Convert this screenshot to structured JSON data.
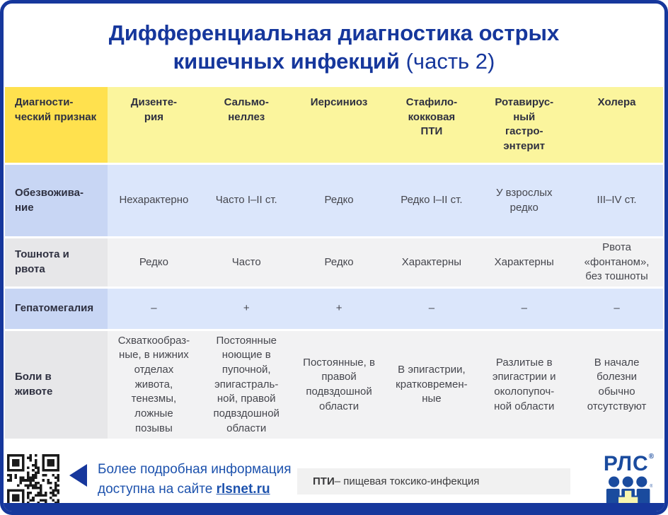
{
  "title": {
    "line1": "Дифференциальная диагностика острых",
    "line2_bold": "кишечных инфекций",
    "line2_regular": " (часть 2)"
  },
  "table": {
    "header": [
      "Диагности-\nческий признак",
      "Дизенте-\nрия",
      "Сальмо-\nнеллез",
      "Иерсиниоз",
      "Стафило-\nкокковая\nПТИ",
      "Ротавирус-\nный\nгастро-\nэнтерит",
      "Холера"
    ],
    "rows": [
      {
        "label": "Обезвожива-\nние",
        "cells": [
          "Нехарактерно",
          "Часто I–II ст.",
          "Редко",
          "Редко I–II ст.",
          "У взрослых\nредко",
          "III–IV ст."
        ]
      },
      {
        "label": "Тошнота и\nрвота",
        "cells": [
          "Редко",
          "Часто",
          "Редко",
          "Характерны",
          "Характерны",
          "Рвота\n«фонтаном»,\nбез тошноты"
        ]
      },
      {
        "label": "Гепатомегалия",
        "cells": [
          "–",
          "+",
          "+",
          "–",
          "–",
          "–"
        ]
      },
      {
        "label": "Боли в\nживоте",
        "cells": [
          "Схваткообраз-\nные, в нижних\nотделах\nживота,\nтенезмы,\nложные\nпозывы",
          "Постоянные\nноющие в\nпупочной,\nэпигастраль-\nной, правой\nподвздошной\nобласти",
          "Постоянные, в\nправой\nподвздошной\nобласти",
          "В эпигастрии,\nкратковремен-\nные",
          "Разлитые в\nэпигастрии и\nоколопупоч-\nной области",
          "В начале\nболезни\nобычно\nотсутствуют"
        ]
      }
    ]
  },
  "footer": {
    "info_text": "Более подробная информация\nдоступна на сайте",
    "link_label": "rlsnet.ru",
    "note_abbr": "ПТИ",
    "note_text": " – пищевая токсико-инфекция",
    "logo_text": "РЛС",
    "reg_mark": "®"
  },
  "colors": {
    "accent_blue": "#16379c",
    "link_blue": "#1d52ad",
    "logo_blue": "#1a4b9e",
    "header_first_col": "#ffe14e",
    "header_cols": "#fbf59d",
    "row_blue_first": "#c8d6f4",
    "row_blue": "#dbe6fb",
    "row_gray_first": "#e7e7e9",
    "row_gray": "#f2f2f3",
    "note_bg": "#f1f1f1",
    "logo_cross_yellow": "#f9f5ae"
  }
}
